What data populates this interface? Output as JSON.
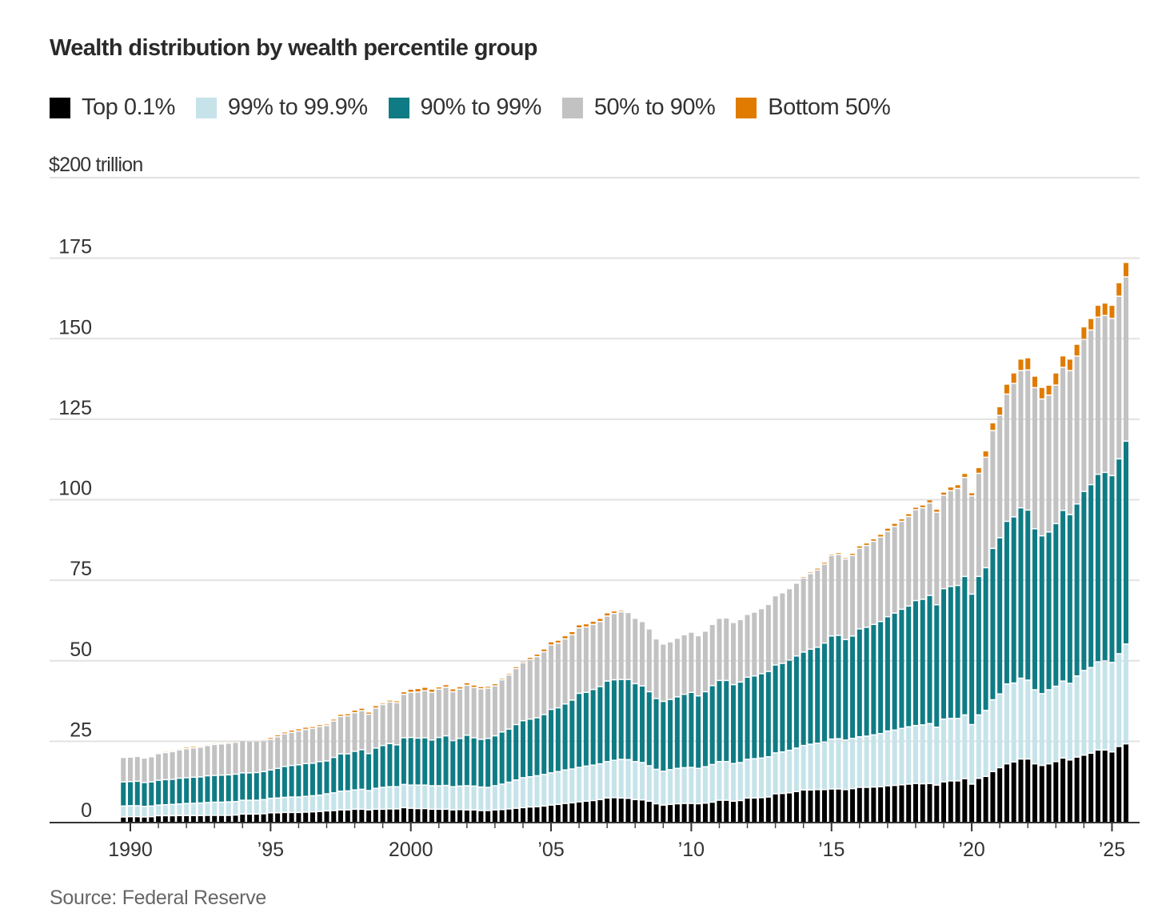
{
  "title": "Wealth distribution by wealth percentile group",
  "source": "Source: Federal Reserve",
  "chart_data": {
    "type": "bar",
    "stacked": true,
    "title": "Wealth distribution by wealth percentile group",
    "unit_label": "$200 trillion",
    "ylim": [
      0,
      200
    ],
    "yticks": [
      {
        "value": 0,
        "label": "0"
      },
      {
        "value": 25,
        "label": "25"
      },
      {
        "value": 50,
        "label": "50"
      },
      {
        "value": 75,
        "label": "75"
      },
      {
        "value": 100,
        "label": "100"
      },
      {
        "value": 125,
        "label": "125"
      },
      {
        "value": 150,
        "label": "150"
      },
      {
        "value": 175,
        "label": "175"
      }
    ],
    "xticks": [
      {
        "year": 1990,
        "label": "1990"
      },
      {
        "year": 1995,
        "label": "’95"
      },
      {
        "year": 2000,
        "label": "2000"
      },
      {
        "year": 2005,
        "label": "’05"
      },
      {
        "year": 2010,
        "label": "’10"
      },
      {
        "year": 2015,
        "label": "’15"
      },
      {
        "year": 2020,
        "label": "’20"
      },
      {
        "year": 2025,
        "label": "’25"
      }
    ],
    "grid": true,
    "legend_position": "top-left",
    "x": [
      "1989 Q4",
      "1990 Q1",
      "1990 Q2",
      "1990 Q3",
      "1990 Q4",
      "1991 Q1",
      "1991 Q2",
      "1991 Q3",
      "1991 Q4",
      "1992 Q1",
      "1992 Q2",
      "1992 Q3",
      "1992 Q4",
      "1993 Q1",
      "1993 Q2",
      "1993 Q3",
      "1993 Q4",
      "1994 Q1",
      "1994 Q2",
      "1994 Q3",
      "1994 Q4",
      "1995 Q1",
      "1995 Q2",
      "1995 Q3",
      "1995 Q4",
      "1996 Q1",
      "1996 Q2",
      "1996 Q3",
      "1996 Q4",
      "1997 Q1",
      "1997 Q2",
      "1997 Q3",
      "1997 Q4",
      "1998 Q1",
      "1998 Q2",
      "1998 Q3",
      "1998 Q4",
      "1999 Q1",
      "1999 Q2",
      "1999 Q3",
      "1999 Q4",
      "2000 Q1",
      "2000 Q2",
      "2000 Q3",
      "2000 Q4",
      "2001 Q1",
      "2001 Q2",
      "2001 Q3",
      "2001 Q4",
      "2002 Q1",
      "2002 Q2",
      "2002 Q3",
      "2002 Q4",
      "2003 Q1",
      "2003 Q2",
      "2003 Q3",
      "2003 Q4",
      "2004 Q1",
      "2004 Q2",
      "2004 Q3",
      "2004 Q4",
      "2005 Q1",
      "2005 Q2",
      "2005 Q3",
      "2005 Q4",
      "2006 Q1",
      "2006 Q2",
      "2006 Q3",
      "2006 Q4",
      "2007 Q1",
      "2007 Q2",
      "2007 Q3",
      "2007 Q4",
      "2008 Q1",
      "2008 Q2",
      "2008 Q3",
      "2008 Q4",
      "2009 Q1",
      "2009 Q2",
      "2009 Q3",
      "2009 Q4",
      "2010 Q1",
      "2010 Q2",
      "2010 Q3",
      "2010 Q4",
      "2011 Q1",
      "2011 Q2",
      "2011 Q3",
      "2011 Q4",
      "2012 Q1",
      "2012 Q2",
      "2012 Q3",
      "2012 Q4",
      "2013 Q1",
      "2013 Q2",
      "2013 Q3",
      "2013 Q4",
      "2014 Q1",
      "2014 Q2",
      "2014 Q3",
      "2014 Q4",
      "2015 Q1",
      "2015 Q2",
      "2015 Q3",
      "2015 Q4",
      "2016 Q1",
      "2016 Q2",
      "2016 Q3",
      "2016 Q4",
      "2017 Q1",
      "2017 Q2",
      "2017 Q3",
      "2017 Q4",
      "2018 Q1",
      "2018 Q2",
      "2018 Q3",
      "2018 Q4",
      "2019 Q1",
      "2019 Q2",
      "2019 Q3",
      "2019 Q4",
      "2020 Q1",
      "2020 Q2",
      "2020 Q3",
      "2020 Q4",
      "2021 Q1",
      "2021 Q2",
      "2021 Q3",
      "2021 Q4",
      "2022 Q1",
      "2022 Q2",
      "2022 Q3",
      "2022 Q4",
      "2023 Q1",
      "2023 Q2",
      "2023 Q3",
      "2023 Q4",
      "2024 Q1",
      "2024 Q2",
      "2024 Q3",
      "2024 Q4",
      "2025 Q1",
      "2025 Q2",
      "2025 Q3"
    ],
    "series": [
      {
        "name": "Top 0.1%",
        "color": "#000000",
        "values": [
          1.3,
          1.4,
          1.4,
          1.3,
          1.4,
          1.7,
          1.7,
          1.7,
          1.75,
          1.75,
          1.75,
          1.75,
          1.8,
          1.8,
          1.8,
          1.8,
          1.9,
          2.2,
          2.2,
          2.2,
          2.3,
          2.6,
          2.6,
          2.7,
          2.7,
          2.7,
          2.8,
          2.9,
          3.0,
          3.2,
          3.3,
          3.5,
          3.5,
          3.7,
          3.7,
          3.5,
          3.7,
          3.7,
          3.8,
          3.8,
          4.2,
          4.0,
          3.9,
          3.9,
          3.7,
          3.7,
          3.7,
          3.5,
          3.6,
          3.5,
          3.5,
          3.3,
          3.3,
          3.5,
          3.6,
          3.8,
          4.0,
          4.2,
          4.4,
          4.5,
          4.7,
          5.0,
          5.2,
          5.5,
          5.7,
          6.0,
          6.2,
          6.4,
          6.7,
          7.2,
          7.3,
          7.2,
          7.1,
          6.7,
          6.6,
          6.2,
          5.4,
          5.0,
          5.2,
          5.4,
          5.5,
          5.5,
          5.4,
          5.6,
          5.9,
          6.5,
          6.5,
          6.2,
          6.4,
          7.2,
          7.2,
          7.3,
          7.5,
          8.5,
          8.6,
          8.8,
          9.2,
          9.7,
          9.7,
          9.8,
          9.8,
          10.0,
          10.0,
          9.8,
          10.1,
          10.5,
          10.5,
          10.6,
          10.7,
          11.0,
          11.1,
          11.3,
          11.5,
          11.7,
          11.6,
          11.7,
          11.2,
          12.2,
          12.5,
          12.5,
          13.2,
          11.5,
          13.3,
          13.9,
          15.4,
          16.6,
          17.8,
          18.4,
          19.3,
          19.3,
          17.8,
          17.3,
          17.8,
          18.5,
          19.6,
          19.0,
          19.9,
          20.5,
          21.1,
          22.1,
          22.1,
          21.5,
          23.2,
          24.0
        ]
      },
      {
        "name": "99% to 99.9%",
        "color": "#c6e3ea",
        "values": [
          3.4,
          3.4,
          3.4,
          3.3,
          3.3,
          3.3,
          3.4,
          3.5,
          3.6,
          3.75,
          3.8,
          3.9,
          4.0,
          4.1,
          4.1,
          4.2,
          4.2,
          4.3,
          4.3,
          4.3,
          4.4,
          4.5,
          4.6,
          4.7,
          4.8,
          4.8,
          4.9,
          5.0,
          5.1,
          5.3,
          5.5,
          5.8,
          5.9,
          6.0,
          6.2,
          6.0,
          6.5,
          6.8,
          6.9,
          6.9,
          7.2,
          7.2,
          7.3,
          7.3,
          7.3,
          7.3,
          7.4,
          7.2,
          7.3,
          7.5,
          7.4,
          7.3,
          7.2,
          7.5,
          7.9,
          8.3,
          8.8,
          9.3,
          9.4,
          9.6,
          9.8,
          10.0,
          10.2,
          10.4,
          10.5,
          10.7,
          10.9,
          11.0,
          11.1,
          11.3,
          11.6,
          12.0,
          12.0,
          11.8,
          11.6,
          11.0,
          10.7,
          10.5,
          10.8,
          11.0,
          11.1,
          11.2,
          11.0,
          11.3,
          11.7,
          12.0,
          12.0,
          11.7,
          11.8,
          12.0,
          12.2,
          12.3,
          12.5,
          12.7,
          12.9,
          13.2,
          13.5,
          13.8,
          14.2,
          14.4,
          14.8,
          15.5,
          15.6,
          15.4,
          15.6,
          15.7,
          15.9,
          16.2,
          16.5,
          17.0,
          17.2,
          17.5,
          17.8,
          18.0,
          18.3,
          18.6,
          18.0,
          19.5,
          19.4,
          19.4,
          19.8,
          18.5,
          19.7,
          20.5,
          22.3,
          22.9,
          24.8,
          24.5,
          25.1,
          24.5,
          23.0,
          22.3,
          23.0,
          23.4,
          23.9,
          23.8,
          25.2,
          26.3,
          26.6,
          27.4,
          27.7,
          27.8,
          28.8,
          31.0
        ]
      },
      {
        "name": "90% to 99%",
        "color": "#0f7c85",
        "values": [
          7.5,
          7.5,
          7.6,
          7.4,
          7.5,
          7.7,
          7.8,
          7.8,
          8.0,
          8.0,
          8.1,
          8.1,
          8.3,
          8.3,
          8.4,
          8.4,
          8.5,
          8.5,
          8.5,
          8.6,
          8.7,
          8.8,
          9.2,
          9.6,
          9.8,
          10.0,
          10.2,
          10.1,
          10.4,
          10.2,
          11.0,
          11.6,
          11.5,
          12.0,
          12.3,
          11.5,
          12.5,
          13.0,
          13.4,
          13.0,
          14.5,
          14.8,
          14.6,
          14.7,
          14.2,
          15.0,
          15.4,
          14.3,
          14.8,
          15.7,
          15.0,
          14.8,
          15.2,
          15.5,
          16.2,
          16.5,
          17.2,
          17.7,
          17.9,
          18.0,
          18.6,
          19.7,
          19.8,
          20.5,
          21.4,
          23.0,
          22.9,
          23.5,
          24.0,
          25.0,
          25.0,
          24.8,
          24.9,
          24.2,
          23.8,
          23.0,
          22.0,
          21.7,
          21.8,
          22.2,
          22.8,
          23.3,
          22.5,
          23.3,
          24.5,
          25.2,
          25.2,
          24.5,
          25.0,
          25.5,
          25.7,
          26.2,
          26.5,
          27.3,
          27.5,
          28.0,
          28.6,
          29.0,
          29.5,
          29.8,
          30.7,
          32.0,
          32.1,
          31.2,
          31.8,
          33.5,
          33.8,
          34.3,
          34.8,
          35.5,
          36.3,
          37.0,
          37.5,
          38.8,
          39.0,
          39.8,
          38.0,
          40.5,
          41.0,
          41.3,
          43.0,
          40.5,
          43.0,
          44.3,
          47.0,
          48.5,
          50.5,
          51.6,
          52.9,
          52.8,
          50.0,
          49.0,
          49.0,
          50.5,
          53.0,
          52.4,
          53.4,
          55.6,
          56.8,
          58.2,
          58.5,
          58.0,
          60.5,
          63.0
        ]
      },
      {
        "name": "50% to 90%",
        "color": "#c2c2c2",
        "values": [
          7.6,
          7.6,
          7.7,
          7.6,
          7.8,
          8.3,
          8.4,
          8.6,
          8.8,
          9.0,
          9.1,
          9.2,
          9.4,
          9.6,
          9.7,
          9.8,
          9.9,
          10.0,
          9.9,
          9.8,
          9.6,
          9.5,
          9.8,
          10.1,
          10.3,
          10.5,
          10.6,
          10.8,
          10.9,
          11.0,
          11.3,
          11.6,
          11.8,
          12.0,
          12.1,
          12.2,
          12.4,
          12.7,
          12.9,
          13.1,
          13.5,
          14.0,
          14.3,
          14.6,
          14.8,
          15.0,
          15.1,
          15.2,
          15.3,
          15.5,
          15.6,
          15.7,
          15.6,
          15.5,
          16.2,
          16.8,
          17.4,
          18.0,
          18.5,
          19.0,
          19.5,
          20.0,
          20.1,
          20.2,
          20.3,
          20.3,
          20.3,
          20.2,
          20.2,
          20.2,
          20.6,
          21.0,
          20.8,
          20.3,
          20.0,
          19.5,
          18.5,
          17.8,
          17.9,
          18.2,
          18.5,
          18.7,
          18.7,
          18.8,
          19.0,
          19.3,
          19.4,
          19.3,
          19.4,
          19.5,
          19.8,
          20.2,
          20.8,
          21.5,
          21.9,
          22.2,
          22.6,
          23.0,
          23.5,
          24.0,
          24.5,
          25.0,
          25.1,
          25.0,
          25.0,
          25.0,
          25.4,
          25.8,
          26.2,
          26.5,
          26.9,
          27.3,
          27.8,
          28.2,
          28.4,
          28.7,
          28.7,
          29.0,
          29.7,
          30.1,
          30.7,
          30.5,
          32.0,
          34.3,
          36.6,
          38.0,
          39.5,
          41.4,
          42.6,
          43.5,
          43.8,
          42.5,
          42.5,
          43.0,
          44.4,
          44.7,
          45.9,
          47.2,
          48.0,
          48.8,
          48.7,
          48.8,
          50.5,
          51.0
        ]
      },
      {
        "name": "Bottom 50%",
        "color": "#e07b00",
        "values": [
          0.2,
          0.3,
          0.3,
          0.3,
          0.3,
          0.3,
          0.4,
          0.4,
          0.4,
          0.5,
          0.5,
          0.4,
          0.4,
          0.4,
          0.4,
          0.4,
          0.4,
          0.3,
          0.3,
          0.3,
          0.4,
          0.6,
          0.6,
          0.6,
          0.7,
          0.7,
          0.7,
          0.6,
          0.6,
          0.5,
          0.6,
          0.7,
          0.7,
          0.8,
          0.8,
          0.7,
          0.8,
          0.5,
          0.6,
          0.6,
          0.8,
          1.0,
          1.1,
          1.1,
          1.0,
          0.7,
          0.8,
          0.9,
          0.8,
          0.8,
          0.8,
          0.7,
          0.6,
          0.7,
          0.5,
          0.5,
          0.6,
          0.5,
          0.7,
          0.8,
          0.9,
          1.0,
          0.9,
          1.0,
          1.0,
          1.0,
          1.0,
          1.0,
          1.0,
          1.0,
          0.8,
          0.5,
          0.3,
          0.2,
          0,
          0,
          0,
          0,
          0,
          0,
          0,
          0,
          0,
          0,
          0,
          0,
          0,
          0,
          0,
          0,
          0,
          0,
          0,
          0,
          0,
          0,
          0.2,
          0.5,
          0.5,
          0.6,
          0.6,
          0.5,
          0.6,
          0.5,
          0.7,
          0.8,
          0.8,
          0.8,
          0.9,
          1.0,
          1.0,
          0.8,
          0.9,
          0.8,
          0.9,
          1.0,
          1.0,
          1.0,
          1.2,
          1.2,
          1.3,
          1.0,
          1.8,
          2.0,
          2.4,
          2.7,
          3.1,
          3.3,
          3.6,
          3.8,
          3.6,
          3.6,
          3.1,
          3.8,
          3.6,
          3.6,
          3.7,
          3.9,
          3.6,
          3.7,
          3.9,
          4.1,
          4.2,
          4.5
        ]
      }
    ]
  }
}
